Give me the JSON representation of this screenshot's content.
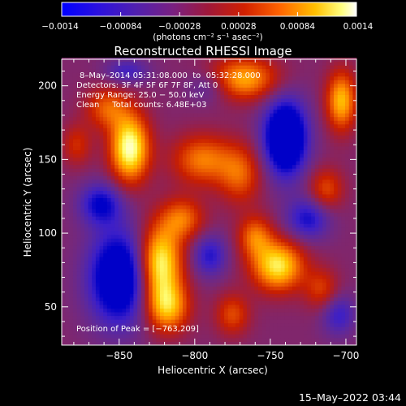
{
  "chart_data": {
    "type": "heatmap",
    "title": "Reconstructed RHESSI Image",
    "xlabel": "Heliocentric X (arcsec)",
    "ylabel": "Heliocentric Y (arcsec)",
    "xlim": [
      -888,
      -693
    ],
    "ylim": [
      24,
      218
    ],
    "x_ticks": [
      -850,
      -800,
      -750,
      -700
    ],
    "x_tick_labels": [
      "−850",
      "−800",
      "−750",
      "−700"
    ],
    "y_ticks": [
      50,
      100,
      150,
      200
    ],
    "y_tick_labels": [
      "50",
      "100",
      "150",
      "200"
    ],
    "colorbar": {
      "range": [
        -0.0014,
        0.0014
      ],
      "tick_values": [
        -0.0014,
        -0.00084,
        -0.00028,
        0.00028,
        0.00084,
        0.0014
      ],
      "tick_labels": [
        "−0.0014",
        "−0.00084",
        "−0.00028",
        "0.00028",
        "0.00084",
        "0.0014"
      ],
      "unit_label": "(photons cm⁻² s⁻¹ asec⁻²)"
    },
    "annotations": {
      "line1": "8–May–2014 05:31:08.000  to  05:32:28.000",
      "line2": "Detectors: 3F 4F 5F 6F 7F 8F, Att 0",
      "line3": "Energy Range: 25.0 − 50.0 keV",
      "line4": "Clean     Total counts: 6.48E+03",
      "peak": "Position of Peak = [−763,209]"
    },
    "grid": false,
    "colormap": [
      "#0000c8",
      "#3c1fc8",
      "#5a28a0",
      "#782878",
      "#a01e3c",
      "#c81e00",
      "#e65000",
      "#ff8c00",
      "#ffc800",
      "#ffff78",
      "#ffffff"
    ],
    "peak_position": [
      -763,
      209
    ],
    "blobs": [
      {
        "x": -843,
        "y": 158,
        "sx": 9,
        "sy": 16,
        "a": 1.1
      },
      {
        "x": -858,
        "y": 185,
        "sx": 10,
        "sy": 10,
        "a": 0.5
      },
      {
        "x": -823,
        "y": 80,
        "sx": 10,
        "sy": 18,
        "a": 1.05
      },
      {
        "x": -818,
        "y": 50,
        "sx": 10,
        "sy": 12,
        "a": 0.75
      },
      {
        "x": -808,
        "y": 110,
        "sx": 10,
        "sy": 10,
        "a": 0.55
      },
      {
        "x": -795,
        "y": 150,
        "sx": 14,
        "sy": 12,
        "a": 0.6
      },
      {
        "x": -768,
        "y": 205,
        "sx": 16,
        "sy": 10,
        "a": 0.75
      },
      {
        "x": -745,
        "y": 78,
        "sx": 12,
        "sy": 12,
        "a": 0.95
      },
      {
        "x": -760,
        "y": 98,
        "sx": 8,
        "sy": 10,
        "a": 0.55
      },
      {
        "x": -775,
        "y": 45,
        "sx": 8,
        "sy": 10,
        "a": 0.45
      },
      {
        "x": -770,
        "y": 140,
        "sx": 10,
        "sy": 14,
        "a": 0.5
      },
      {
        "x": -703,
        "y": 190,
        "sx": 7,
        "sy": 14,
        "a": 0.8
      },
      {
        "x": -713,
        "y": 130,
        "sx": 8,
        "sy": 10,
        "a": 0.45
      },
      {
        "x": -716,
        "y": 62,
        "sx": 8,
        "sy": 10,
        "a": 0.4
      },
      {
        "x": -878,
        "y": 160,
        "sx": 7,
        "sy": 10,
        "a": 0.35
      },
      {
        "x": -740,
        "y": 165,
        "sx": 10,
        "sy": 18,
        "a": -1.05
      },
      {
        "x": -850,
        "y": 70,
        "sx": 14,
        "sy": 22,
        "a": -0.9
      },
      {
        "x": -862,
        "y": 120,
        "sx": 10,
        "sy": 10,
        "a": -0.55
      },
      {
        "x": -790,
        "y": 85,
        "sx": 8,
        "sy": 10,
        "a": -0.45
      },
      {
        "x": -725,
        "y": 110,
        "sx": 10,
        "sy": 10,
        "a": -0.5
      },
      {
        "x": -845,
        "y": 210,
        "sx": 10,
        "sy": 6,
        "a": -0.35
      },
      {
        "x": -705,
        "y": 45,
        "sx": 8,
        "sy": 10,
        "a": -0.4
      },
      {
        "x": -790,
        "y": 200,
        "sx": 10,
        "sy": 8,
        "a": -0.3
      }
    ]
  },
  "footer": {
    "timestamp": "15–May–2022 03:44"
  }
}
